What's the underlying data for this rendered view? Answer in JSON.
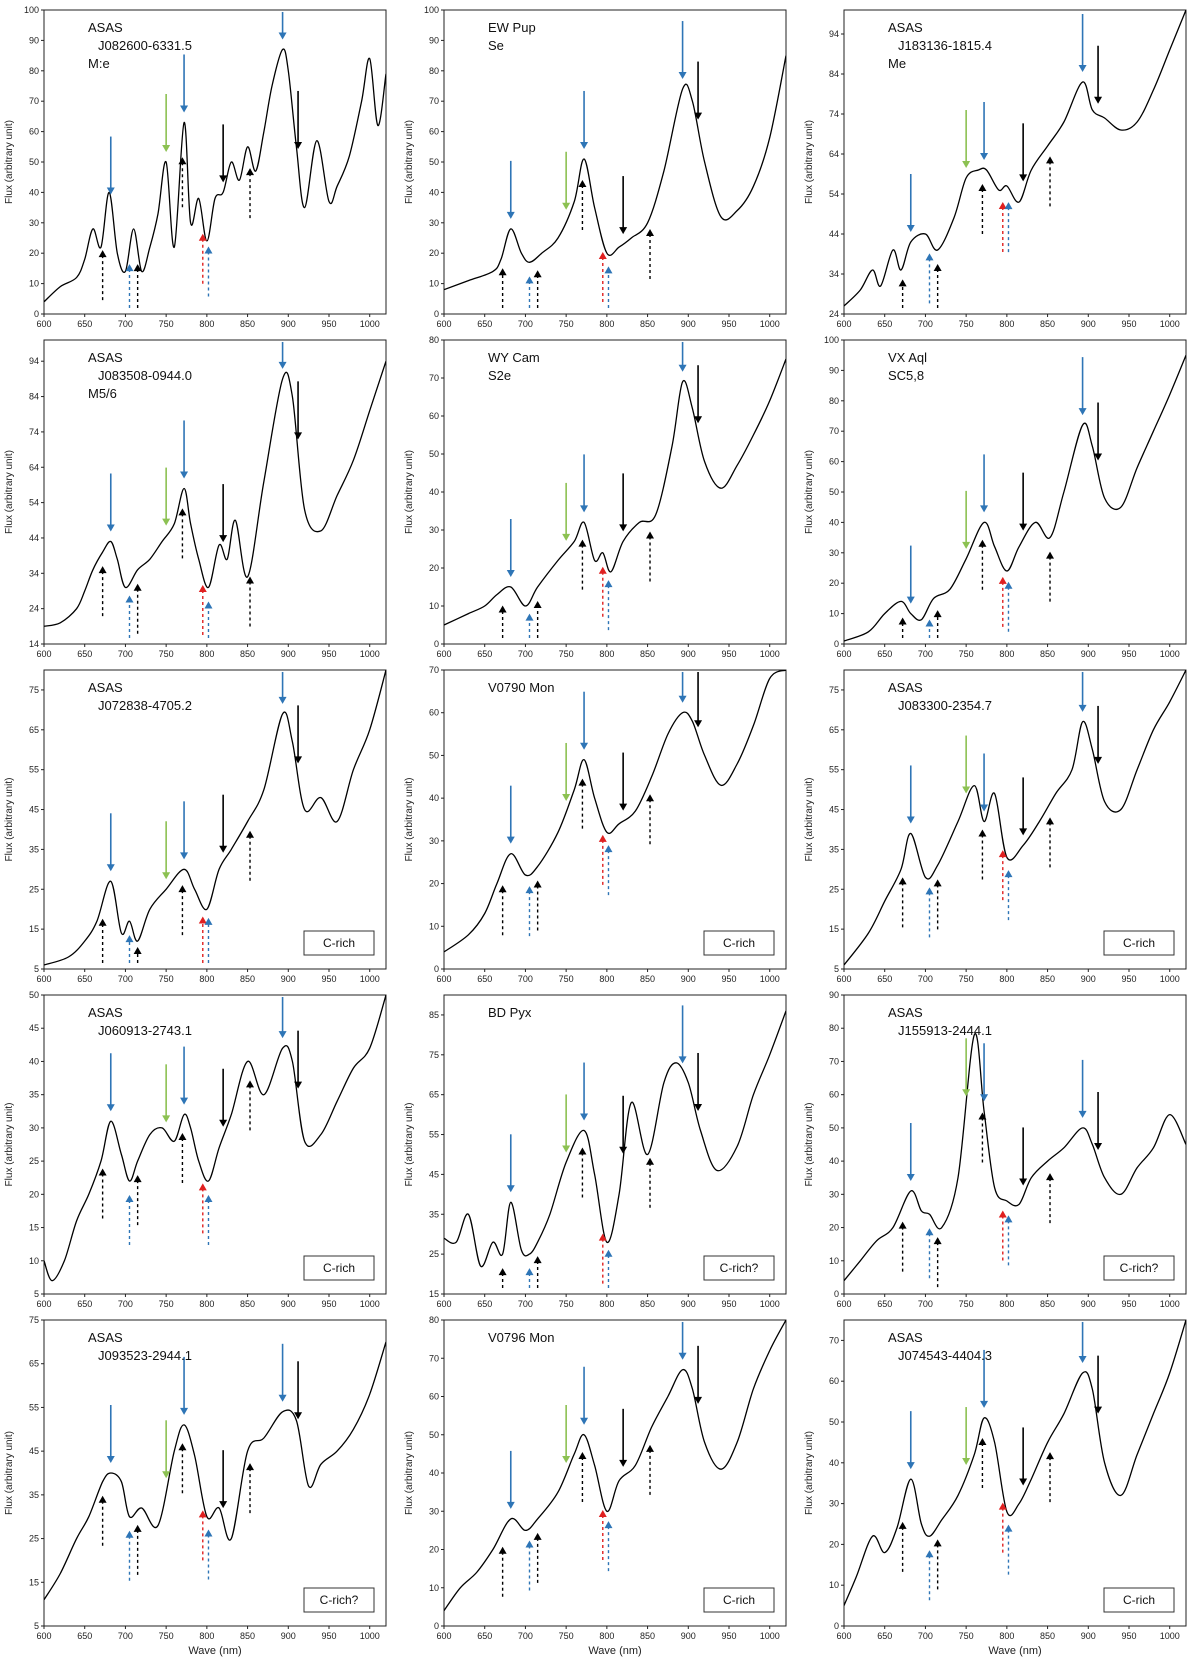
{
  "shared": {
    "ylabel": "Flux (arbitrary unit)",
    "xlabel": "Wave (nm)",
    "xlim": [
      600,
      1020
    ],
    "xticks": [
      600,
      650,
      700,
      750,
      800,
      850,
      900,
      950,
      1000
    ],
    "colors": {
      "blue": "#2e75b6",
      "green": "#8cc152",
      "black": "#000000",
      "red": "#e02020",
      "line": "#000000"
    },
    "arrow_sets": {
      "solid": [
        {
          "x": 682,
          "color": "blue"
        },
        {
          "x": 750,
          "color": "green"
        },
        {
          "x": 772,
          "color": "blue"
        },
        {
          "x": 820,
          "color": "black"
        },
        {
          "x": 893,
          "color": "blue"
        },
        {
          "x": 912,
          "color": "black"
        }
      ],
      "dashed": [
        {
          "x": 672,
          "color": "black"
        },
        {
          "x": 705,
          "color": "blue"
        },
        {
          "x": 715,
          "color": "black"
        },
        {
          "x": 770,
          "color": "black"
        },
        {
          "x": 795,
          "color": "red"
        },
        {
          "x": 802,
          "color": "blue"
        },
        {
          "x": 853,
          "color": "black"
        }
      ]
    }
  },
  "chart_data": [
    {
      "type": "line",
      "name_lines": [
        "ASAS",
        "J082600-6331.5",
        "M:e"
      ],
      "ylim": [
        0,
        100
      ],
      "yticks": [
        0,
        10,
        20,
        30,
        40,
        50,
        60,
        70,
        80,
        90,
        100
      ],
      "badge": "",
      "x": [
        600,
        620,
        640,
        650,
        660,
        670,
        680,
        690,
        700,
        710,
        720,
        730,
        740,
        750,
        760,
        772,
        780,
        790,
        800,
        810,
        820,
        830,
        840,
        850,
        860,
        870,
        880,
        893,
        900,
        910,
        920,
        935,
        950,
        960,
        975,
        990,
        1000,
        1010,
        1020
      ],
      "values": [
        4,
        9,
        12,
        18,
        28,
        22,
        40,
        20,
        14,
        28,
        14,
        22,
        33,
        50,
        22,
        63,
        30,
        38,
        24,
        38,
        40,
        50,
        44,
        55,
        47,
        60,
        75,
        87,
        80,
        55,
        35,
        57,
        37,
        42,
        52,
        70,
        84,
        62,
        79
      ]
    },
    {
      "type": "line",
      "name_lines": [
        "EW Pup",
        "Se"
      ],
      "ylim": [
        0,
        100
      ],
      "yticks": [
        0,
        10,
        20,
        30,
        40,
        50,
        60,
        70,
        80,
        90,
        100
      ],
      "badge": "",
      "x": [
        600,
        630,
        660,
        670,
        682,
        695,
        705,
        720,
        740,
        760,
        772,
        785,
        800,
        815,
        830,
        850,
        870,
        893,
        905,
        920,
        940,
        960,
        980,
        1000,
        1020
      ],
      "values": [
        8,
        11,
        14,
        18,
        28,
        20,
        17,
        20,
        25,
        37,
        51,
        35,
        20,
        22,
        25,
        30,
        47,
        74,
        70,
        50,
        32,
        34,
        42,
        58,
        85
      ]
    },
    {
      "type": "line",
      "name_lines": [
        "ASAS",
        "J183136-1815.4",
        "Me"
      ],
      "ylim": [
        24,
        100
      ],
      "yticks": [
        24,
        34,
        44,
        54,
        64,
        74,
        84,
        94
      ],
      "badge": "",
      "x": [
        600,
        620,
        635,
        645,
        660,
        670,
        682,
        700,
        715,
        735,
        750,
        765,
        775,
        790,
        800,
        815,
        830,
        850,
        870,
        893,
        905,
        920,
        940,
        960,
        980,
        1000,
        1020
      ],
      "values": [
        26,
        30,
        35,
        31,
        40,
        35,
        42,
        44,
        40,
        48,
        58,
        60,
        60,
        55,
        56,
        52,
        60,
        66,
        72,
        82,
        75,
        73,
        70,
        72,
        80,
        90,
        100
      ]
    },
    {
      "type": "line",
      "name_lines": [
        "ASAS",
        "J083508-0944.0",
        "M5/6"
      ],
      "ylim": [
        14,
        100
      ],
      "yticks": [
        14,
        24,
        34,
        44,
        54,
        64,
        74,
        84,
        94
      ],
      "badge": "",
      "x": [
        600,
        620,
        640,
        650,
        660,
        672,
        682,
        690,
        700,
        715,
        730,
        745,
        760,
        772,
        780,
        790,
        802,
        815,
        825,
        835,
        850,
        870,
        893,
        905,
        920,
        940,
        960,
        980,
        1000,
        1020
      ],
      "values": [
        19,
        20,
        24,
        29,
        35,
        40,
        43,
        38,
        30,
        35,
        38,
        43,
        48,
        58,
        48,
        38,
        30,
        42,
        38,
        49,
        33,
        60,
        89,
        84,
        52,
        46,
        56,
        66,
        80,
        94
      ]
    },
    {
      "type": "line",
      "name_lines": [
        "WY Cam",
        "S2e"
      ],
      "ylim": [
        0,
        80
      ],
      "yticks": [
        0,
        10,
        20,
        30,
        40,
        50,
        60,
        70,
        80
      ],
      "badge": "",
      "x": [
        600,
        630,
        650,
        665,
        682,
        700,
        715,
        740,
        760,
        772,
        785,
        795,
        805,
        820,
        840,
        860,
        880,
        893,
        905,
        920,
        940,
        960,
        980,
        1000,
        1020
      ],
      "values": [
        5,
        8,
        10,
        13,
        15,
        10,
        15,
        22,
        27,
        32,
        22,
        24,
        19,
        27,
        32,
        34,
        52,
        69,
        62,
        48,
        41,
        47,
        55,
        64,
        75
      ]
    },
    {
      "type": "line",
      "name_lines": [
        "VX Aql",
        "SC5,8"
      ],
      "ylim": [
        0,
        100
      ],
      "yticks": [
        0,
        10,
        20,
        30,
        40,
        50,
        60,
        70,
        80,
        90,
        100
      ],
      "badge": "",
      "x": [
        600,
        630,
        650,
        670,
        682,
        695,
        710,
        730,
        750,
        772,
        785,
        800,
        815,
        835,
        853,
        870,
        893,
        905,
        920,
        940,
        960,
        980,
        1000,
        1020
      ],
      "values": [
        1,
        4,
        10,
        14,
        10,
        8,
        15,
        18,
        28,
        40,
        32,
        24,
        32,
        40,
        35,
        50,
        72,
        65,
        48,
        45,
        58,
        70,
        82,
        95
      ]
    },
    {
      "type": "line",
      "name_lines": [
        "ASAS",
        "J072838-4705.2"
      ],
      "ylim": [
        5,
        80
      ],
      "yticks": [
        5,
        15,
        25,
        35,
        45,
        55,
        65,
        75
      ],
      "badge": "C-rich",
      "x": [
        600,
        630,
        650,
        665,
        682,
        695,
        705,
        715,
        730,
        750,
        772,
        785,
        800,
        815,
        830,
        850,
        870,
        893,
        905,
        920,
        940,
        960,
        980,
        1000,
        1020
      ],
      "values": [
        6,
        8,
        12,
        17,
        27,
        14,
        17,
        12,
        20,
        25,
        30,
        25,
        20,
        30,
        35,
        42,
        50,
        69,
        62,
        45,
        48,
        42,
        55,
        65,
        80
      ]
    },
    {
      "type": "line",
      "name_lines": [
        "V0790 Mon"
      ],
      "ylim": [
        0,
        70
      ],
      "yticks": [
        0,
        10,
        20,
        30,
        40,
        50,
        60,
        70
      ],
      "badge": "C-rich",
      "x": [
        600,
        630,
        650,
        665,
        682,
        700,
        715,
        740,
        760,
        772,
        785,
        800,
        815,
        835,
        855,
        875,
        893,
        905,
        920,
        940,
        960,
        980,
        1000,
        1020
      ],
      "values": [
        4,
        8,
        13,
        20,
        27,
        22,
        24,
        32,
        42,
        49,
        40,
        32,
        34,
        37,
        45,
        55,
        60,
        58,
        50,
        43,
        48,
        57,
        68,
        70
      ]
    },
    {
      "type": "line",
      "name_lines": [
        "ASAS",
        "J083300-2354.7"
      ],
      "ylim": [
        5,
        80
      ],
      "yticks": [
        5,
        15,
        25,
        35,
        45,
        55,
        65,
        75
      ],
      "badge": "C-rich",
      "x": [
        600,
        630,
        650,
        670,
        682,
        700,
        715,
        740,
        760,
        772,
        785,
        800,
        820,
        840,
        860,
        880,
        893,
        905,
        920,
        940,
        960,
        980,
        1000,
        1020
      ],
      "values": [
        6,
        14,
        22,
        30,
        39,
        28,
        31,
        42,
        51,
        42,
        49,
        33,
        36,
        42,
        49,
        55,
        67,
        60,
        47,
        45,
        55,
        65,
        72,
        80
      ]
    },
    {
      "type": "line",
      "name_lines": [
        "ASAS",
        "J060913-2743.1"
      ],
      "ylim": [
        5,
        50
      ],
      "yticks": [
        5,
        10,
        15,
        20,
        25,
        30,
        35,
        40,
        45,
        50
      ],
      "badge": "C-rich",
      "x": [
        600,
        610,
        625,
        640,
        655,
        670,
        682,
        695,
        705,
        715,
        730,
        745,
        760,
        772,
        780,
        790,
        802,
        815,
        830,
        850,
        870,
        893,
        905,
        920,
        940,
        960,
        980,
        1000,
        1020
      ],
      "values": [
        10,
        7,
        10,
        16,
        20,
        25,
        31,
        26,
        22,
        25,
        29,
        30,
        28,
        32,
        30,
        25,
        22,
        27,
        32,
        40,
        35,
        42,
        40,
        28,
        29,
        34,
        39,
        42,
        50
      ]
    },
    {
      "type": "line",
      "name_lines": [
        "BD Pyx"
      ],
      "ylim": [
        15,
        90
      ],
      "yticks": [
        15,
        25,
        35,
        45,
        55,
        65,
        75,
        85
      ],
      "badge": "C-rich?",
      "x": [
        600,
        615,
        630,
        645,
        660,
        672,
        682,
        695,
        705,
        715,
        730,
        750,
        772,
        785,
        800,
        815,
        830,
        850,
        870,
        885,
        900,
        915,
        935,
        960,
        980,
        1000,
        1020
      ],
      "values": [
        29,
        28,
        35,
        22,
        28,
        25,
        38,
        26,
        25,
        28,
        35,
        48,
        56,
        45,
        28,
        40,
        63,
        50,
        68,
        73,
        68,
        56,
        46,
        52,
        65,
        75,
        86
      ]
    },
    {
      "type": "line",
      "name_lines": [
        "ASAS",
        "J155913-2444.1"
      ],
      "ylim": [
        0,
        90
      ],
      "yticks": [
        0,
        10,
        20,
        30,
        40,
        50,
        60,
        70,
        80,
        90
      ],
      "badge": "C-rich?",
      "x": [
        600,
        620,
        640,
        660,
        682,
        695,
        705,
        720,
        740,
        760,
        772,
        785,
        800,
        815,
        830,
        850,
        870,
        893,
        905,
        920,
        940,
        960,
        980,
        1000,
        1020
      ],
      "values": [
        4,
        10,
        16,
        20,
        31,
        25,
        24,
        20,
        35,
        78,
        55,
        32,
        28,
        27,
        35,
        40,
        44,
        50,
        45,
        35,
        30,
        38,
        44,
        54,
        45
      ]
    },
    {
      "type": "line",
      "name_lines": [
        "ASAS",
        "J093523-2944.1"
      ],
      "ylim": [
        5,
        75
      ],
      "yticks": [
        5,
        15,
        25,
        35,
        45,
        55,
        65,
        75
      ],
      "badge": "C-rich?",
      "x": [
        600,
        620,
        640,
        655,
        672,
        682,
        695,
        705,
        720,
        740,
        760,
        772,
        785,
        800,
        815,
        830,
        850,
        870,
        893,
        910,
        925,
        940,
        960,
        980,
        1000,
        1020
      ],
      "values": [
        11,
        17,
        25,
        30,
        38,
        40,
        38,
        30,
        32,
        28,
        45,
        51,
        44,
        30,
        32,
        25,
        45,
        48,
        54,
        52,
        37,
        42,
        45,
        50,
        58,
        70
      ]
    },
    {
      "type": "line",
      "name_lines": [
        "V0796 Mon"
      ],
      "ylim": [
        0,
        80
      ],
      "yticks": [
        0,
        10,
        20,
        30,
        40,
        50,
        60,
        70,
        80
      ],
      "badge": "C-rich",
      "x": [
        600,
        620,
        640,
        660,
        682,
        700,
        715,
        740,
        760,
        772,
        785,
        800,
        815,
        835,
        855,
        875,
        893,
        905,
        920,
        940,
        960,
        980,
        1000,
        1020
      ],
      "values": [
        4,
        10,
        14,
        20,
        28,
        25,
        28,
        35,
        45,
        50,
        42,
        30,
        38,
        42,
        52,
        60,
        67,
        62,
        48,
        41,
        48,
        62,
        72,
        80
      ]
    },
    {
      "type": "line",
      "name_lines": [
        "ASAS",
        "J074543-4404.3"
      ],
      "ylim": [
        0,
        75
      ],
      "yticks": [
        0,
        10,
        20,
        30,
        40,
        50,
        60,
        70
      ],
      "badge": "C-rich",
      "x": [
        600,
        615,
        635,
        650,
        665,
        682,
        695,
        705,
        720,
        740,
        760,
        772,
        785,
        800,
        815,
        830,
        850,
        870,
        893,
        905,
        920,
        940,
        960,
        980,
        1000,
        1020
      ],
      "values": [
        5,
        12,
        22,
        18,
        24,
        36,
        25,
        22,
        26,
        32,
        42,
        51,
        45,
        28,
        30,
        36,
        45,
        52,
        62,
        58,
        40,
        32,
        42,
        52,
        62,
        75
      ]
    }
  ]
}
